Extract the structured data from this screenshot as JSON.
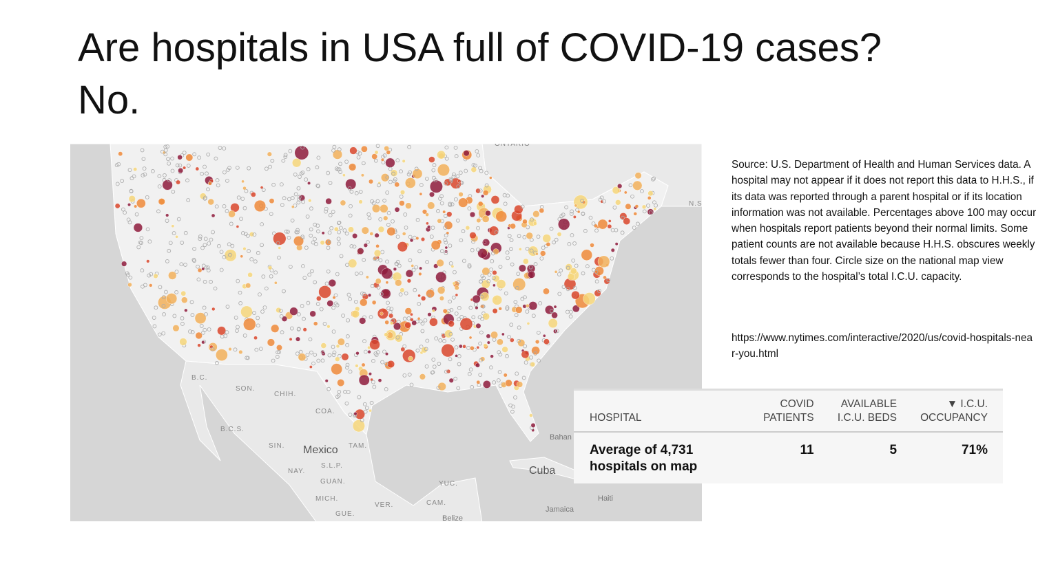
{
  "title": {
    "line1": "Are hospitals in USA full of COVID-19 cases?",
    "line2": "No."
  },
  "map": {
    "labels": [
      "ONTARIO",
      "N.S",
      "B.C.",
      "SON.",
      "CHIH.",
      "COA.",
      "B.C.S.",
      "SIN.",
      "Mexico",
      "TAM.",
      "S.L.P.",
      "NAY.",
      "GUAN.",
      "MICH.",
      "GUE.",
      "VER.",
      "CAM.",
      "YUC.",
      "Belize",
      "Cuba",
      "Bahan",
      "Haiti",
      "Jamaica"
    ]
  },
  "source": {
    "text": "Source: U.S. Department of Health and Human Services data. A hospital may not appear if it does not report this data to H.H.S., if its data was reported through a parent hospital or if its location information was not available. Percentages above 100 may occur when hospitals report patients beyond their normal limits. Some patient counts are not available because H.H.S. obscures weekly totals fewer than four. Circle size on the national map view corresponds to the hospital’s total I.C.U. capacity.",
    "url": "https://www.nytimes.com/interactive/2020/us/covid-hospitals-near-you.html"
  },
  "table": {
    "headers": [
      "HOSPITAL",
      "COVID PATIENTS",
      "AVAILABLE I.C.U. BEDS",
      "▼ I.C.U. OCCUPANCY"
    ],
    "rows": [
      [
        "Average of 4,731 hospitals on map",
        "11",
        "5",
        "71%"
      ]
    ]
  }
}
